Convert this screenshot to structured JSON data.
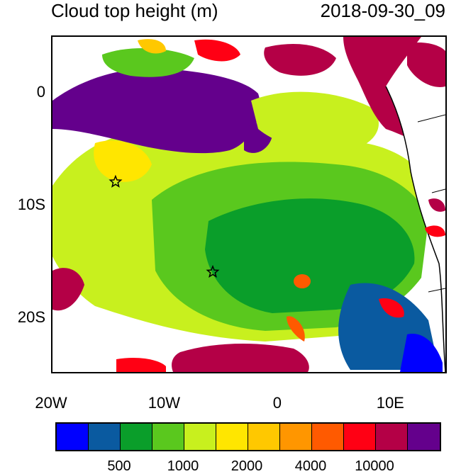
{
  "map": {
    "title": "Cloud top height (m)",
    "datetime": "2018-09-30_09",
    "y_axis": {
      "ticks": [
        {
          "value": 0,
          "label": "0"
        },
        {
          "value": -10,
          "label": "10S"
        },
        {
          "value": -20,
          "label": "20S"
        }
      ]
    },
    "x_axis": {
      "ticks": [
        {
          "value": -20,
          "label": "20W"
        },
        {
          "value": -10,
          "label": "10W"
        },
        {
          "value": 0,
          "label": "0"
        },
        {
          "value": 10,
          "label": "10E"
        }
      ]
    },
    "extent": {
      "lon": [
        -20,
        15
      ],
      "lat": [
        -25,
        5
      ]
    },
    "markers": [
      {
        "name": "star-marker",
        "lon": -14.3,
        "lat": -8.0
      },
      {
        "name": "star-marker",
        "lon": -5.7,
        "lat": -16.0
      }
    ]
  },
  "colorbar": {
    "colors": [
      "#0000ff",
      "#0a5aa0",
      "#0a9e2a",
      "#5ac81e",
      "#c8f01e",
      "#ffe600",
      "#ffc800",
      "#ff9600",
      "#ff5a00",
      "#ff0014",
      "#b40046",
      "#64008c"
    ],
    "labels": [
      "500",
      "1000",
      "2000",
      "4000",
      "10000"
    ]
  }
}
